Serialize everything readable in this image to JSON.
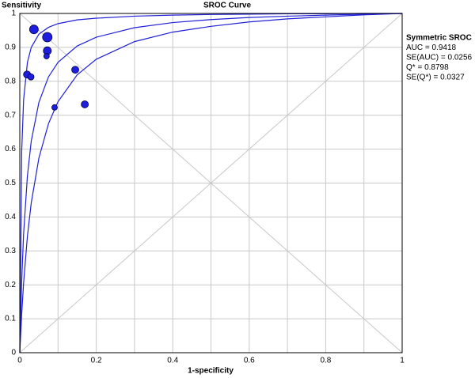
{
  "chart_data": {
    "type": "scatter",
    "title": "SROC Curve",
    "y_label": "Sensitivity",
    "x_label": "1-specificity",
    "xlim": [
      0,
      1
    ],
    "ylim": [
      0,
      1
    ],
    "xticks": [
      0,
      0.2,
      0.4,
      0.6,
      0.8,
      1
    ],
    "x_minor_grid": [
      0.1,
      0.3,
      0.5,
      0.7,
      0.9
    ],
    "yticks": [
      0,
      0.1,
      0.2,
      0.3,
      0.4,
      0.5,
      0.6,
      0.7,
      0.8,
      0.9,
      1
    ],
    "grid": true,
    "grid_color": "#c8c8c8",
    "diagonals": true,
    "annotation": [
      "Symmetric SROC",
      "AUC = 0.9418",
      "SE(AUC) = 0.0256",
      "Q* = 0.8798",
      "SE(Q*) = 0.0327"
    ],
    "points": {
      "color": "#1e1ee0",
      "x": [
        0.037,
        0.072,
        0.072,
        0.07,
        0.019,
        0.029,
        0.145,
        0.091,
        0.17
      ],
      "values": [
        0.953,
        0.93,
        0.89,
        0.874,
        0.82,
        0.813,
        0.834,
        0.723,
        0.732
      ],
      "sizes": [
        5.5,
        6,
        5,
        3.5,
        4.5,
        4,
        4.5,
        3.5,
        4.5
      ]
    },
    "curve_x": [
      0,
      0.005,
      0.01,
      0.02,
      0.03,
      0.05,
      0.075,
      0.1,
      0.15,
      0.2,
      0.3,
      0.4,
      0.5,
      0.6,
      0.7,
      0.8,
      0.9,
      1
    ],
    "curves": [
      {
        "color": "#2020d8",
        "values": [
          0,
          0.594,
          0.746,
          0.856,
          0.9,
          0.939,
          0.959,
          0.97,
          0.981,
          0.986,
          0.992,
          0.995,
          0.997,
          0.998,
          0.999,
          0.999,
          1,
          1
        ]
      },
      {
        "color": "#2020d8",
        "values": [
          0,
          0.212,
          0.351,
          0.522,
          0.624,
          0.738,
          0.813,
          0.856,
          0.904,
          0.93,
          0.958,
          0.973,
          0.982,
          0.988,
          0.992,
          0.995,
          0.998,
          1
        ]
      },
      {
        "color": "#2020d8",
        "values": [
          0,
          0.114,
          0.206,
          0.344,
          0.442,
          0.574,
          0.675,
          0.74,
          0.819,
          0.865,
          0.917,
          0.945,
          0.962,
          0.975,
          0.984,
          0.99,
          0.996,
          1
        ]
      }
    ]
  }
}
